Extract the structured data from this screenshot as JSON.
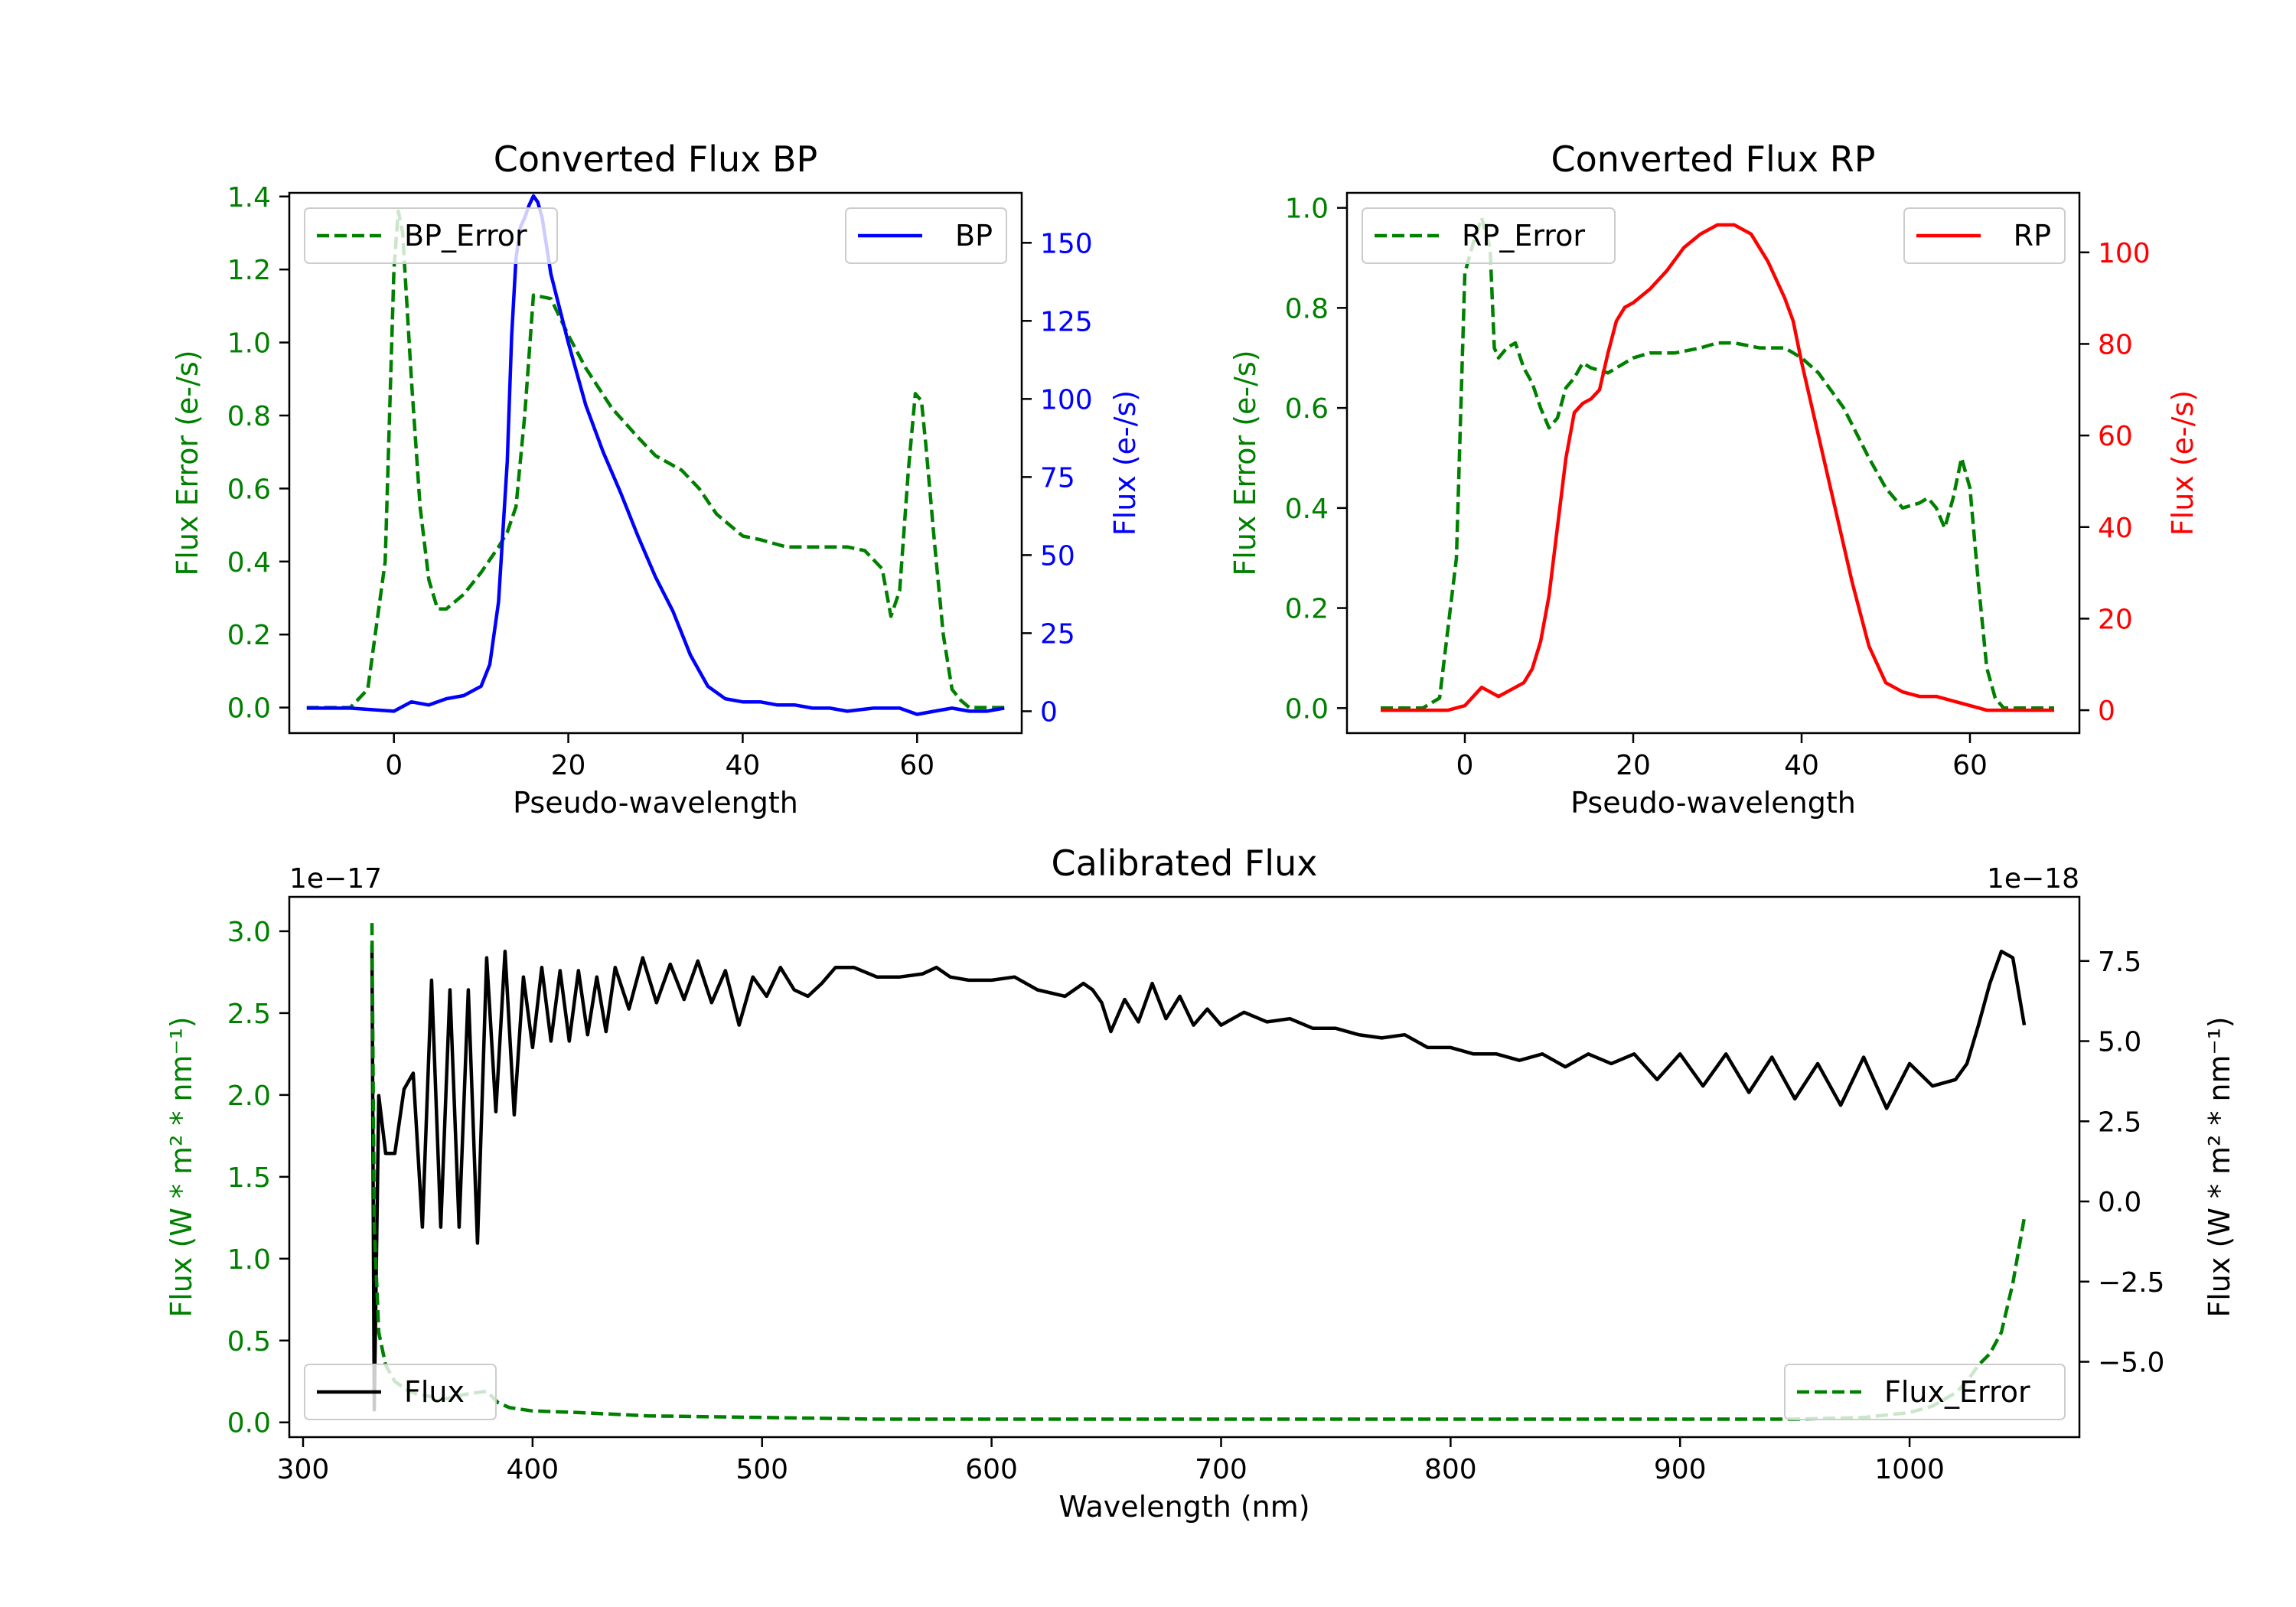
{
  "chart_data": [
    {
      "type": "line",
      "title": "Converted Flux BP",
      "xlabel": "Pseudo-wavelength",
      "ylabel_left": "Flux Error (e-/s)",
      "ylabel_right": "Flux (e-/s)",
      "xlim": [
        -12,
        72
      ],
      "ylim_left": [
        -0.07,
        1.41
      ],
      "ylim_right": [
        -7,
        166
      ],
      "xticks": [
        0,
        20,
        40,
        60
      ],
      "yticks_left": [
        0.0,
        0.2,
        0.4,
        0.6,
        0.8,
        1.0,
        1.2,
        1.4
      ],
      "yticks_left_labels": [
        "0.0",
        "0.2",
        "0.4",
        "0.6",
        "0.8",
        "1.0",
        "1.2",
        "1.4"
      ],
      "yticks_right": [
        0,
        25,
        50,
        75,
        100,
        125,
        150
      ],
      "yticks_right_labels": [
        "0",
        "25",
        "50",
        "75",
        "100",
        "125",
        "150"
      ],
      "left_color": "#008000",
      "right_color": "#0000ff",
      "series": [
        {
          "name": "BP_Error",
          "axis": "left",
          "style": "dashed",
          "color": "#008000",
          "x": [
            -10,
            -5,
            -3,
            -1,
            0,
            0.5,
            1,
            2,
            3,
            4,
            5,
            6,
            8,
            10,
            12,
            13,
            14,
            15,
            16,
            18,
            20,
            22,
            25,
            28,
            30,
            33,
            35,
            37,
            40,
            42,
            45,
            48,
            50,
            52,
            54,
            56,
            57,
            58,
            59,
            59.8,
            60.5,
            61,
            62,
            63,
            64,
            65,
            66,
            68,
            70
          ],
          "y": [
            0.0,
            0.0,
            0.05,
            0.4,
            1.2,
            1.36,
            1.3,
            0.9,
            0.55,
            0.35,
            0.27,
            0.27,
            0.31,
            0.37,
            0.44,
            0.48,
            0.55,
            0.8,
            1.13,
            1.12,
            1.02,
            0.93,
            0.82,
            0.74,
            0.69,
            0.65,
            0.6,
            0.53,
            0.47,
            0.46,
            0.44,
            0.44,
            0.44,
            0.44,
            0.43,
            0.38,
            0.25,
            0.32,
            0.65,
            0.86,
            0.84,
            0.72,
            0.45,
            0.2,
            0.05,
            0.02,
            0.0,
            0.0,
            0.0
          ]
        },
        {
          "name": "BP",
          "axis": "right",
          "style": "solid",
          "color": "#0000ff",
          "x": [
            -10,
            -5,
            0,
            2,
            4,
            6,
            8,
            10,
            11,
            12,
            13,
            13.5,
            14,
            14.5,
            15,
            15.5,
            16,
            16.5,
            17,
            18,
            20,
            22,
            24,
            26,
            28,
            30,
            32,
            34,
            36,
            38,
            40,
            42,
            44,
            46,
            48,
            50,
            52,
            55,
            58,
            60,
            62,
            64,
            66,
            68,
            70
          ],
          "y": [
            1,
            1,
            0,
            3,
            2,
            4,
            5,
            8,
            15,
            35,
            80,
            120,
            145,
            155,
            158,
            162,
            165,
            163,
            158,
            140,
            118,
            98,
            83,
            70,
            56,
            43,
            32,
            18,
            8,
            4,
            3,
            3,
            2,
            2,
            1,
            1,
            0,
            1,
            1,
            -1,
            0,
            1,
            0,
            0,
            1
          ]
        }
      ]
    },
    {
      "type": "line",
      "title": "Converted Flux RP",
      "xlabel": "Pseudo-wavelength",
      "ylabel_left": "Flux Error (e-/s)",
      "ylabel_right": "Flux (e-/s)",
      "xlim": [
        -14,
        73
      ],
      "ylim_left": [
        -0.05,
        1.03
      ],
      "ylim_right": [
        -5,
        113
      ],
      "xticks": [
        0,
        20,
        40,
        60
      ],
      "yticks_left": [
        0.0,
        0.2,
        0.4,
        0.6,
        0.8,
        1.0
      ],
      "yticks_left_labels": [
        "0.0",
        "0.2",
        "0.4",
        "0.6",
        "0.8",
        "1.0"
      ],
      "yticks_right": [
        0,
        20,
        40,
        60,
        80,
        100
      ],
      "yticks_right_labels": [
        "0",
        "20",
        "40",
        "60",
        "80",
        "100"
      ],
      "left_color": "#008000",
      "right_color": "#ff0000",
      "series": [
        {
          "name": "RP_Error",
          "axis": "left",
          "style": "dashed",
          "color": "#008000",
          "x": [
            -10,
            -5,
            -3,
            -1,
            0,
            1,
            2,
            3,
            3.5,
            4,
            5,
            6,
            7,
            8,
            9,
            10,
            11,
            12,
            13,
            14,
            15,
            17,
            20,
            22,
            25,
            28,
            30,
            32,
            35,
            38,
            40,
            42,
            45,
            48,
            50,
            52,
            54,
            55,
            56,
            57,
            58,
            59,
            60,
            61,
            62,
            63,
            64,
            65,
            66,
            68,
            70
          ],
          "y": [
            0.0,
            0.0,
            0.02,
            0.3,
            0.87,
            0.93,
            0.98,
            0.92,
            0.72,
            0.7,
            0.72,
            0.73,
            0.68,
            0.65,
            0.6,
            0.56,
            0.58,
            0.64,
            0.66,
            0.69,
            0.68,
            0.67,
            0.7,
            0.71,
            0.71,
            0.72,
            0.73,
            0.73,
            0.72,
            0.72,
            0.7,
            0.67,
            0.6,
            0.5,
            0.44,
            0.4,
            0.41,
            0.42,
            0.4,
            0.36,
            0.42,
            0.5,
            0.44,
            0.25,
            0.08,
            0.02,
            0.0,
            0.0,
            0.0,
            0.0,
            0.0
          ]
        },
        {
          "name": "RP",
          "axis": "right",
          "style": "solid",
          "color": "#ff0000",
          "x": [
            -10,
            -5,
            -2,
            0,
            1,
            2,
            3,
            4,
            5,
            6,
            7,
            8,
            9,
            10,
            11,
            12,
            13,
            14,
            15,
            16,
            17,
            18,
            19,
            20,
            22,
            24,
            26,
            28,
            30,
            32,
            34,
            36,
            38,
            39,
            40,
            42,
            44,
            46,
            48,
            50,
            52,
            54,
            56,
            58,
            60,
            62,
            65,
            68,
            70
          ],
          "y": [
            0,
            0,
            0,
            1,
            3,
            5,
            4,
            3,
            4,
            5,
            6,
            9,
            15,
            25,
            40,
            55,
            65,
            67,
            68,
            70,
            78,
            85,
            88,
            89,
            92,
            96,
            101,
            104,
            106,
            106,
            104,
            98,
            90,
            85,
            76,
            60,
            44,
            28,
            14,
            6,
            4,
            3,
            3,
            2,
            1,
            0,
            0,
            0,
            0
          ]
        }
      ]
    },
    {
      "type": "line",
      "title": "Calibrated Flux",
      "xlabel": "Wavelength (nm)",
      "ylabel_left": "Flux (W * m² * nm⁻¹)",
      "ylabel_right": "Flux (W * m² * nm⁻¹)",
      "offset_left": "1e−17",
      "offset_right": "1e−18",
      "xlim": [
        294,
        1074
      ],
      "ylim_left": [
        -0.09,
        3.21
      ],
      "ylim_right": [
        -7.35,
        9.5
      ],
      "xticks": [
        300,
        400,
        500,
        600,
        700,
        800,
        900,
        1000
      ],
      "yticks_left": [
        0.0,
        0.5,
        1.0,
        1.5,
        2.0,
        2.5,
        3.0
      ],
      "yticks_left_labels": [
        "0.0",
        "0.5",
        "1.0",
        "1.5",
        "2.0",
        "2.5",
        "3.0"
      ],
      "yticks_right": [
        -5.0,
        -2.5,
        0.0,
        2.5,
        5.0,
        7.5
      ],
      "yticks_right_labels": [
        "−5.0",
        "−2.5",
        "0.0",
        "2.5",
        "5.0",
        "7.5"
      ],
      "left_color": "#008000",
      "right_color": "#000000",
      "series": [
        {
          "name": "Flux",
          "axis": "right",
          "style": "solid",
          "color": "#000000",
          "x": [
            330,
            331,
            333,
            336,
            340,
            344,
            348,
            352,
            356,
            360,
            364,
            368,
            372,
            376,
            380,
            384,
            388,
            392,
            396,
            400,
            404,
            408,
            412,
            416,
            420,
            424,
            428,
            432,
            436,
            442,
            448,
            454,
            460,
            466,
            472,
            478,
            484,
            490,
            496,
            502,
            508,
            514,
            520,
            526,
            532,
            540,
            550,
            560,
            570,
            576,
            582,
            590,
            600,
            610,
            620,
            632,
            636,
            640,
            644,
            648,
            652,
            658,
            664,
            670,
            676,
            682,
            688,
            694,
            700,
            710,
            720,
            730,
            740,
            750,
            760,
            770,
            780,
            790,
            800,
            810,
            820,
            830,
            840,
            850,
            860,
            870,
            880,
            890,
            900,
            910,
            920,
            930,
            940,
            950,
            960,
            970,
            980,
            990,
            1000,
            1010,
            1020,
            1025,
            1030,
            1035,
            1040,
            1045,
            1050
          ],
          "y": [
            8,
            -6.5,
            3.3,
            1.5,
            1.5,
            3.5,
            4.0,
            -0.8,
            6.9,
            -0.8,
            6.6,
            -0.8,
            6.6,
            -1.3,
            7.6,
            2.8,
            7.8,
            2.7,
            7.0,
            4.8,
            7.3,
            5.0,
            7.2,
            5.0,
            7.2,
            5.2,
            7.0,
            5.3,
            7.3,
            6.0,
            7.6,
            6.2,
            7.4,
            6.3,
            7.5,
            6.2,
            7.2,
            5.5,
            7.0,
            6.4,
            7.3,
            6.6,
            6.4,
            6.8,
            7.3,
            7.3,
            7.0,
            7.0,
            7.1,
            7.3,
            7.0,
            6.9,
            6.9,
            7.0,
            6.6,
            6.4,
            6.6,
            6.8,
            6.6,
            6.2,
            5.3,
            6.3,
            5.6,
            6.8,
            5.7,
            6.4,
            5.5,
            6.0,
            5.5,
            5.9,
            5.6,
            5.7,
            5.4,
            5.4,
            5.2,
            5.1,
            5.2,
            4.8,
            4.8,
            4.6,
            4.6,
            4.4,
            4.6,
            4.2,
            4.6,
            4.3,
            4.6,
            3.8,
            4.6,
            3.6,
            4.6,
            3.4,
            4.5,
            3.2,
            4.3,
            3.0,
            4.5,
            2.9,
            4.3,
            3.6,
            3.8,
            4.3,
            5.5,
            6.8,
            7.8,
            7.6,
            5.5
          ]
        },
        {
          "name": "Flux_Error",
          "axis": "left",
          "style": "dashed",
          "color": "#008000",
          "x": [
            330,
            331,
            333,
            336,
            340,
            345,
            350,
            355,
            360,
            365,
            370,
            375,
            380,
            385,
            390,
            400,
            420,
            450,
            500,
            550,
            600,
            650,
            700,
            750,
            800,
            850,
            900,
            950,
            980,
            1000,
            1010,
            1020,
            1025,
            1030,
            1035,
            1040,
            1045,
            1050
          ],
          "y": [
            3.05,
            1.2,
            0.55,
            0.35,
            0.25,
            0.2,
            0.17,
            0.16,
            0.14,
            0.15,
            0.17,
            0.18,
            0.19,
            0.12,
            0.09,
            0.07,
            0.06,
            0.04,
            0.03,
            0.02,
            0.02,
            0.02,
            0.02,
            0.02,
            0.02,
            0.02,
            0.02,
            0.02,
            0.03,
            0.06,
            0.1,
            0.18,
            0.25,
            0.35,
            0.42,
            0.55,
            0.85,
            1.25
          ]
        }
      ]
    }
  ],
  "legends": {
    "bp_error": "BP_Error",
    "bp": "BP",
    "rp_error": "RP_Error",
    "rp": "RP",
    "flux": "Flux",
    "flux_error": "Flux_Error"
  }
}
